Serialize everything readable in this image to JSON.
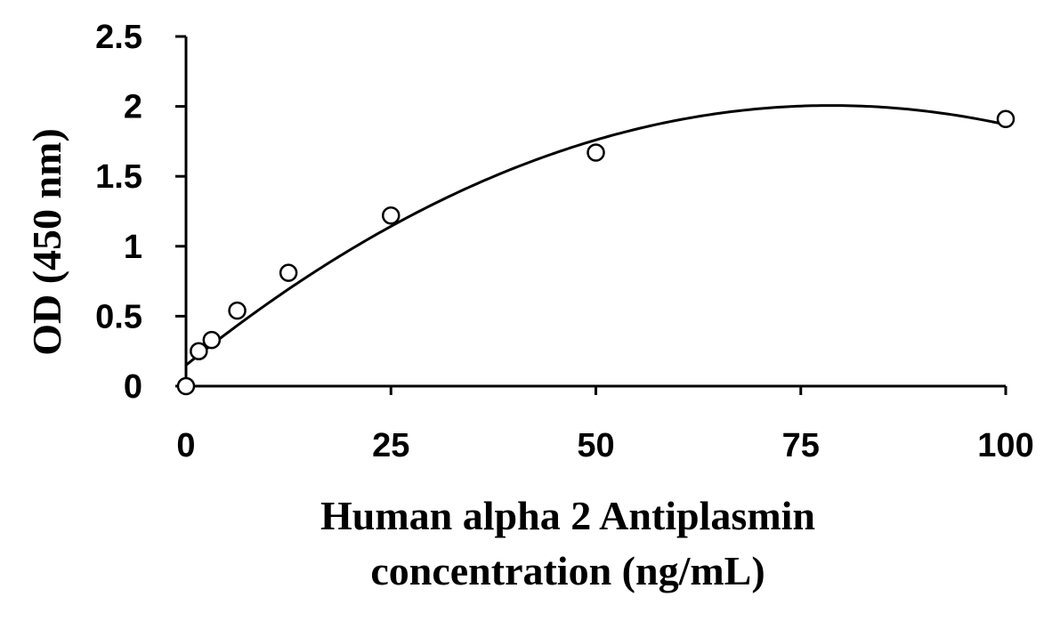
{
  "chart_data": {
    "type": "scatter",
    "title": "",
    "xlabel_lines": [
      "Human alpha 2 Antiplasmin",
      "concentration (ng/mL)"
    ],
    "ylabel": "OD (450 nm)",
    "xlim": [
      0,
      100
    ],
    "ylim": [
      0,
      2.5
    ],
    "xticks": [
      0,
      25,
      50,
      75,
      100
    ],
    "yticks": [
      0,
      0.5,
      1,
      1.5,
      2,
      2.5
    ],
    "xtick_labels": [
      "0",
      "25",
      "50",
      "75",
      "100"
    ],
    "ytick_labels": [
      "0",
      "0.5",
      "1",
      "1.5",
      "2",
      "2.5"
    ],
    "grid": false,
    "legend": "none",
    "series": [
      {
        "x": [
          0,
          1.56,
          3.13,
          6.25,
          12.5,
          25,
          50,
          100
        ],
        "y": [
          0.0,
          0.25,
          0.33,
          0.54,
          0.81,
          1.22,
          1.67,
          1.91
        ],
        "marker": "open-circle"
      }
    ],
    "fit": {
      "type": "quadratic",
      "coefficients": [
        0.15,
        0.0472,
        -0.0003
      ],
      "x_range": [
        0,
        100
      ]
    }
  }
}
